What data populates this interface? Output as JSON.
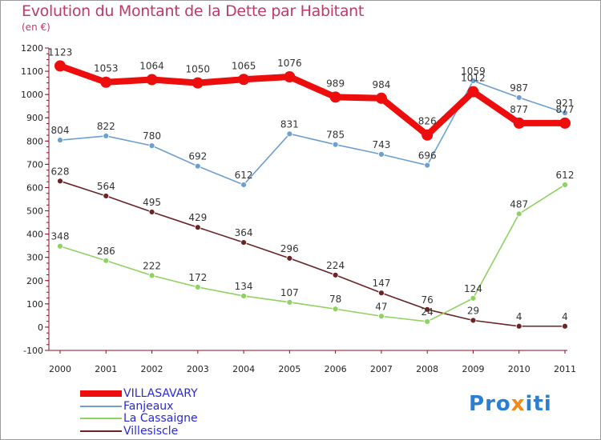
{
  "chart_data": {
    "type": "line",
    "title": "Evolution du Montant de la Dette par Habitant",
    "unit": "(en €)",
    "x": [
      "2000",
      "2001",
      "2002",
      "2003",
      "2004",
      "2005",
      "2006",
      "2007",
      "2008",
      "2009",
      "2010",
      "2011"
    ],
    "ylim": [
      -100,
      1200
    ],
    "yticks": [
      -100,
      0,
      100,
      200,
      300,
      400,
      500,
      600,
      700,
      800,
      900,
      1000,
      1100,
      1200
    ],
    "series": [
      {
        "name": "Villesiscle",
        "color": "#6b2324",
        "values": [
          628,
          564,
          495,
          429,
          364,
          296,
          224,
          147,
          76,
          29,
          4,
          4
        ]
      },
      {
        "name": "La Cassaigne",
        "color": "#8ed260",
        "values": [
          348,
          286,
          222,
          172,
          134,
          107,
          78,
          47,
          24,
          124,
          487,
          612
        ]
      },
      {
        "name": "Fanjeaux",
        "color": "#6e9fd1",
        "values": [
          804,
          822,
          780,
          692,
          612,
          831,
          785,
          743,
          696,
          1059,
          987,
          921
        ]
      },
      {
        "name": "VILLASAVARY",
        "color": "#ee0d0d",
        "values": [
          1123,
          1053,
          1064,
          1050,
          1065,
          1076,
          989,
          984,
          826,
          1012,
          877,
          877
        ]
      }
    ],
    "legend": [
      "VILLASAVARY",
      "Fanjeaux",
      "La Cassaigne",
      "Villesiscle"
    ]
  },
  "legend_colors": [
    "#ee0d0d",
    "#6e9fd1",
    "#8ed260",
    "#6b2324"
  ],
  "logo": {
    "text": "Proxiti",
    "letters": [
      "P",
      "r",
      "o",
      "x",
      "i",
      "t",
      "i"
    ],
    "colors": [
      "#2b7fd0",
      "#2b7fd0",
      "#2b7fd0",
      "#f08a18",
      "#2b7fd0",
      "#2b7fd0",
      "#2b7fd0"
    ]
  }
}
